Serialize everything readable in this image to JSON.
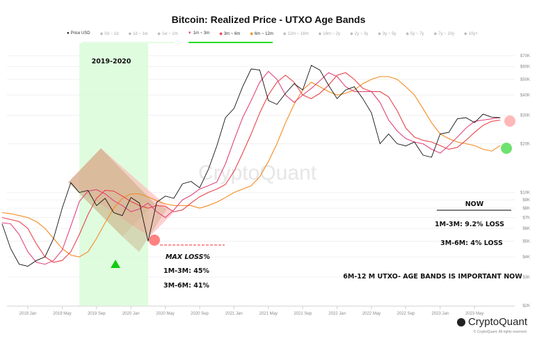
{
  "chart_data": {
    "type": "line",
    "title": "Bitcoin: Realized Price - UTXO Age Bands",
    "legend": [
      {
        "label": "Price USD",
        "active": true,
        "color": "#111111"
      },
      {
        "label": "0d ~ 1d",
        "active": false
      },
      {
        "label": "1d ~ 1w",
        "active": false
      },
      {
        "label": "1w ~ 1m",
        "active": false
      },
      {
        "label": "1m ~ 3m",
        "active": true,
        "color": "#e0447c"
      },
      {
        "label": "3m ~ 6m",
        "active": true,
        "color": "#e8434a"
      },
      {
        "label": "6m ~ 12m",
        "active": true,
        "color": "#f58a1f"
      },
      {
        "label": "12m ~ 18m",
        "active": false
      },
      {
        "label": "18m ~ 2y",
        "active": false
      },
      {
        "label": "2y ~ 3y",
        "active": false
      },
      {
        "label": "3y ~ 5y",
        "active": false
      },
      {
        "label": "5y ~ 7y",
        "active": false
      },
      {
        "label": "7y ~ 10y",
        "active": false
      },
      {
        "label": "10y+",
        "active": false
      }
    ],
    "legend_placement": "top",
    "y_scale": "log",
    "ylim": [
      2000,
      80000
    ],
    "y_ticks": [
      {
        "v": 70000,
        "label": "$70K"
      },
      {
        "v": 60000,
        "label": "$60K"
      },
      {
        "v": 50000,
        "label": "$50K"
      },
      {
        "v": 40000,
        "label": "$40K"
      },
      {
        "v": 30000,
        "label": "$30K"
      },
      {
        "v": 20000,
        "label": "$20K"
      },
      {
        "v": 10000,
        "label": "$10K"
      },
      {
        "v": 9000,
        "label": "$9K"
      },
      {
        "v": 8000,
        "label": "$8K"
      },
      {
        "v": 7000,
        "label": "$7K"
      },
      {
        "v": 6000,
        "label": "$6K"
      },
      {
        "v": 5000,
        "label": "$5K"
      },
      {
        "v": 4000,
        "label": "$4K"
      },
      {
        "v": 3000,
        "label": "$3K"
      },
      {
        "v": 2000,
        "label": "$2K"
      }
    ],
    "x_ticks": [
      "2019 Jan",
      "2019 May",
      "2019 Sep",
      "2020 Jan",
      "2020 May",
      "2020 Sep",
      "2021 Jan",
      "2021 May",
      "2021 Sep",
      "2022 Jan",
      "2022 May",
      "2022 Sep",
      "2023 Jan",
      "2023 May"
    ],
    "x": [
      "2018-10",
      "2018-11",
      "2018-12",
      "2019-01",
      "2019-02",
      "2019-03",
      "2019-04",
      "2019-05",
      "2019-06",
      "2019-07",
      "2019-08",
      "2019-09",
      "2019-10",
      "2019-11",
      "2019-12",
      "2020-01",
      "2020-02",
      "2020-03",
      "2020-04",
      "2020-05",
      "2020-06",
      "2020-07",
      "2020-08",
      "2020-09",
      "2020-10",
      "2020-11",
      "2020-12",
      "2021-01",
      "2021-02",
      "2021-03",
      "2021-04",
      "2021-05",
      "2021-06",
      "2021-07",
      "2021-08",
      "2021-09",
      "2021-10",
      "2021-11",
      "2021-12",
      "2022-01",
      "2022-02",
      "2022-03",
      "2022-04",
      "2022-05",
      "2022-06",
      "2022-07",
      "2022-08",
      "2022-09",
      "2022-10",
      "2022-11",
      "2022-12",
      "2023-01",
      "2023-02",
      "2023-03",
      "2023-04",
      "2023-05",
      "2023-06",
      "2023-07",
      "2023-08"
    ],
    "series": [
      {
        "name": "Price USD",
        "color": "#111111",
        "values": [
          6400,
          4500,
          3600,
          3500,
          3800,
          4000,
          5200,
          8000,
          11500,
          10000,
          10300,
          8300,
          9200,
          7500,
          7200,
          9300,
          8600,
          5000,
          8700,
          9500,
          9200,
          11300,
          11700,
          10700,
          13800,
          19400,
          29000,
          33000,
          45000,
          58000,
          57000,
          37000,
          35000,
          41000,
          47000,
          43000,
          61000,
          57000,
          46000,
          38000,
          43000,
          45000,
          38000,
          31000,
          20000,
          23000,
          20000,
          19400,
          20500,
          17000,
          16500,
          23000,
          23500,
          28500,
          29000,
          27000,
          30500,
          29200,
          29000
        ]
      },
      {
        "name": "1m ~ 3m",
        "color": "#e0447c",
        "values": [
          6500,
          6400,
          5500,
          4300,
          3700,
          3600,
          3800,
          4400,
          6200,
          8800,
          10200,
          10400,
          9800,
          8900,
          8300,
          7600,
          7900,
          8600,
          7600,
          7000,
          7800,
          9000,
          9600,
          10500,
          11000,
          11600,
          15000,
          21000,
          29000,
          37000,
          48000,
          56000,
          50000,
          40000,
          36000,
          40000,
          44000,
          49000,
          55000,
          52000,
          45000,
          42000,
          42000,
          42000,
          36000,
          28000,
          24000,
          21500,
          20500,
          20000,
          18500,
          17500,
          19500,
          22000,
          25000,
          27500,
          28000,
          28500,
          29000
        ]
      },
      {
        "name": "3m ~ 6m",
        "color": "#e8434a",
        "values": [
          7000,
          6800,
          6600,
          6000,
          4800,
          4000,
          3700,
          3800,
          4300,
          5500,
          7300,
          9200,
          10300,
          10200,
          9500,
          8800,
          8300,
          8000,
          8300,
          8200,
          7600,
          7800,
          8600,
          9400,
          10000,
          10500,
          11200,
          13500,
          17500,
          23000,
          31000,
          40000,
          48000,
          53000,
          48000,
          40000,
          38000,
          41000,
          46000,
          53000,
          55000,
          50000,
          44000,
          42000,
          42000,
          39000,
          32000,
          25000,
          22000,
          21000,
          20500,
          19500,
          18500,
          19000,
          21000,
          23500,
          26000,
          27500,
          28000
        ]
      },
      {
        "name": "6m ~ 12m",
        "color": "#f58a1f",
        "values": [
          7500,
          7400,
          7200,
          7000,
          6600,
          6000,
          5200,
          4500,
          4100,
          4000,
          4300,
          5200,
          6500,
          8000,
          9200,
          9800,
          9800,
          9400,
          8900,
          8500,
          8300,
          8300,
          8300,
          8000,
          8300,
          8700,
          9300,
          10000,
          10500,
          11000,
          12500,
          15500,
          20000,
          27000,
          35000,
          43000,
          48000,
          45000,
          42000,
          40000,
          41000,
          43000,
          47000,
          50000,
          52000,
          52000,
          50000,
          45000,
          40000,
          33000,
          27000,
          23000,
          21500,
          20500,
          20000,
          19500,
          18500,
          18000,
          19500
        ]
      }
    ],
    "annotations": {
      "period_label": "2019-2020",
      "period_start": "2019-07",
      "period_end": "2020-03",
      "max_loss_title": "MAX LOSS%",
      "max_loss_1": "1M-3M: 45%",
      "max_loss_2": "3M-6M: 41%",
      "now_title": "NOW",
      "now_1": "1M-3M: 9.2% LOSS",
      "now_2": "3M-6M: 4% LOSS",
      "note": "6M-12 M  UTXO- AGE BANDS IS IMPORTANT NOW",
      "note_color": "#ff0000"
    },
    "watermark": "CryptoQuant"
  },
  "footer": {
    "logo": "CryptoQuant",
    "copyright": "© CryptoQuant. All rights reserved."
  }
}
